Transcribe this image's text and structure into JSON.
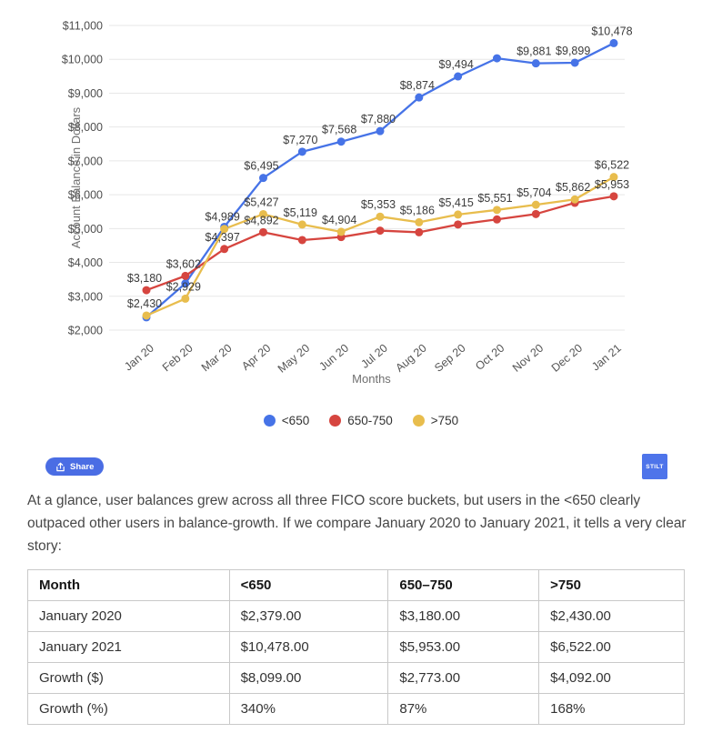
{
  "chart_data": {
    "type": "line",
    "title": "",
    "x": [
      "Jan 20",
      "Feb 20",
      "Mar 20",
      "Apr 20",
      "May 20",
      "Jun 20",
      "Jul 20",
      "Aug 20",
      "Sep 20",
      "Oct 20",
      "Nov 20",
      "Dec 20",
      "Jan 21"
    ],
    "xlabel": "Months",
    "ylabel": "Account Balance in Dollars",
    "ylim": [
      2000,
      11000
    ],
    "yticks": [
      "$2,000",
      "$3,000",
      "$4,000",
      "$5,000",
      "$6,000",
      "$7,000",
      "$8,000",
      "$9,000",
      "$10,000",
      "$11,000"
    ],
    "grid": true,
    "legend_position": "bottom",
    "series": [
      {
        "name": "<650",
        "color": "#4673e7",
        "values": [
          2379,
          3380,
          5050,
          6495,
          7270,
          7568,
          7880,
          8874,
          9494,
          10030,
          9881,
          9899,
          10478
        ],
        "point_labels": [
          null,
          null,
          null,
          "$6,495",
          "$7,270",
          "$7,568",
          "$7,880",
          "$8,874",
          "$9,494",
          null,
          "$9,881",
          "$9,899",
          "$10,478"
        ]
      },
      {
        "name": "650-750",
        "color": "#d6453f",
        "values": [
          3180,
          3602,
          4397,
          4892,
          4660,
          4750,
          4940,
          4890,
          5120,
          5270,
          5430,
          5760,
          5953
        ],
        "point_labels": [
          "$3,180",
          "$3,602",
          "$4,397",
          "$4,892",
          null,
          null,
          null,
          null,
          null,
          null,
          null,
          null,
          "$5,953"
        ]
      },
      {
        "name": ">750",
        "color": "#e8bd4d",
        "values": [
          2430,
          2929,
          4989,
          5427,
          5119,
          4904,
          5353,
          5186,
          5415,
          5551,
          5704,
          5862,
          6522
        ],
        "point_labels": [
          "$2,430",
          "$2,929",
          "$4,989",
          "$5,427",
          "$5,119",
          "$4,904",
          "$5,353",
          "$5,186",
          "$5,415",
          "$5,551",
          "$5,704",
          "$5,862",
          "$6,522"
        ]
      }
    ]
  },
  "share": {
    "label": "Share"
  },
  "badge": {
    "label": "STILT"
  },
  "paragraph": "At a glance, user balances grew across all three FICO score buckets, but users in the <650 clearly outpaced other users in balance-growth. If we compare January 2020 to January 2021, it tells a very clear story:",
  "table": {
    "headers": [
      "Month",
      "<650",
      "650–750",
      ">750"
    ],
    "rows": [
      [
        "January 2020",
        "$2,379.00",
        "$3,180.00",
        "$2,430.00"
      ],
      [
        "January 2021",
        "$10,478.00",
        "$5,953.00",
        "$6,522.00"
      ],
      [
        "Growth ($)",
        "$8,099.00",
        "$2,773.00",
        "$4,092.00"
      ],
      [
        "Growth (%)",
        "340%",
        "87%",
        "168%"
      ]
    ]
  }
}
